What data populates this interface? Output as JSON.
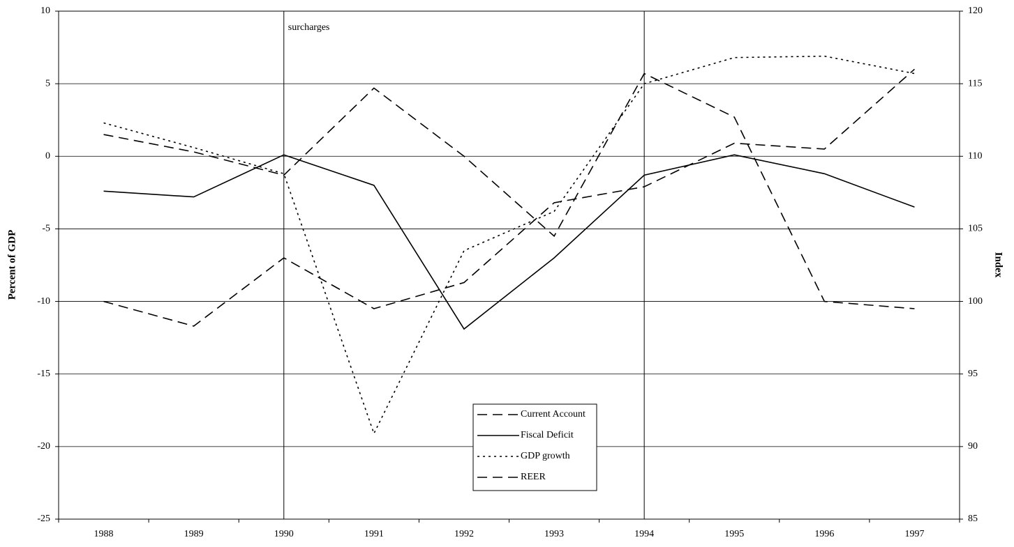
{
  "chart_data": {
    "type": "line",
    "categories": [
      "1988",
      "1989",
      "1990",
      "1991",
      "1992",
      "1993",
      "1994",
      "1995",
      "1996",
      "1997"
    ],
    "series": [
      {
        "name": "Current Account",
        "color": "#000000",
        "dash": "14,8",
        "axis": "y",
        "values": [
          1.5,
          0.3,
          -1.3,
          4.7,
          0.0,
          -5.5,
          5.7,
          2.7,
          -10.0,
          -10.5
        ]
      },
      {
        "name": "Fiscal Deficit",
        "color": "#000000",
        "dash": "none",
        "axis": "y",
        "values": [
          -2.4,
          -2.8,
          0.1,
          -2.0,
          -11.9,
          -7.0,
          -1.3,
          0.1,
          -1.2,
          -3.5
        ]
      },
      {
        "name": "GDP growth",
        "color": "#000000",
        "dash": "3,5",
        "axis": "y",
        "values": [
          2.3,
          0.6,
          -1.2,
          -19.1,
          -6.5,
          -3.8,
          5.0,
          6.8,
          6.9,
          5.7
        ]
      },
      {
        "name": "REER",
        "color": "#000000",
        "dash": "14,8",
        "axis": "y2",
        "values": [
          100.0,
          98.3,
          103.0,
          99.5,
          101.3,
          106.8,
          107.9,
          110.9,
          110.5,
          116.0
        ]
      }
    ],
    "ylabel": "Percent of GDP",
    "y2label": "Index",
    "ylim": [
      -25,
      10
    ],
    "yticks": [
      -25,
      -20,
      -15,
      -10,
      -5,
      0,
      5,
      10
    ],
    "y2lim": [
      85,
      120
    ],
    "y2ticks": [
      85,
      90,
      95,
      100,
      105,
      110,
      115,
      120
    ],
    "grid": true,
    "vlines": [
      "1990",
      "1994"
    ],
    "annotation": {
      "text": "surcharges",
      "x": "1990"
    }
  }
}
